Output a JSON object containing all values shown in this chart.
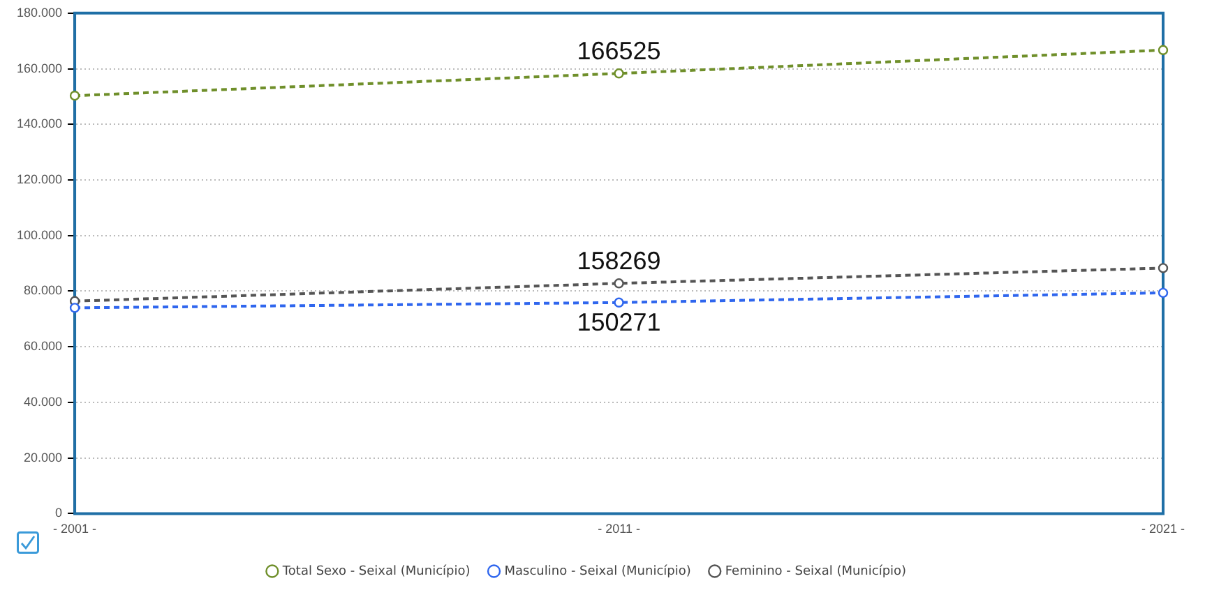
{
  "chart_data": {
    "type": "line",
    "categories": [
      "- 2001 -",
      "- 2011 -",
      "- 2021 -"
    ],
    "series": [
      {
        "name": "Total Sexo - Seixal (Município)",
        "color": "#6f8f2a",
        "values": [
          150300,
          158300,
          166700
        ]
      },
      {
        "name": "Masculino - Seixal (Município)",
        "color": "#2f66ee",
        "values": [
          74000,
          75900,
          79400
        ]
      },
      {
        "name": "Feminino - Seixal (Município)",
        "color": "#555555",
        "values": [
          76400,
          82800,
          88300
        ]
      }
    ],
    "ylim": [
      0,
      180000
    ],
    "yticks": [
      0,
      {
        "value": 20000,
        "label": "20.000"
      },
      {
        "value": 40000,
        "label": "40.000"
      },
      {
        "value": 60000,
        "label": "60.000"
      },
      {
        "value": 80000,
        "label": "80.000"
      },
      {
        "value": 100000,
        "label": "100.000"
      },
      {
        "value": 120000,
        "label": "120.000"
      },
      {
        "value": 140000,
        "label": "140.000"
      },
      {
        "value": 160000,
        "label": "160.000"
      },
      {
        "value": 180000,
        "label": "180.000"
      }
    ],
    "annotations": [
      "166525",
      "158269",
      "150271"
    ],
    "grid": "y",
    "legend": "bottom",
    "marker": "circle",
    "line_style": "dashed"
  }
}
